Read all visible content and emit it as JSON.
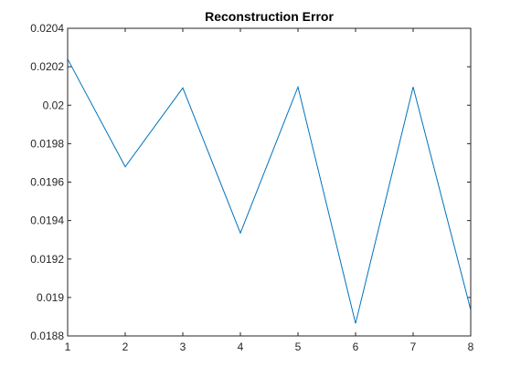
{
  "chart_data": {
    "type": "line",
    "title": "Reconstruction Error",
    "xlabel": "",
    "ylabel": "",
    "x": [
      1,
      2,
      3,
      4,
      5,
      6,
      7,
      8
    ],
    "series": [
      {
        "values": [
          0.02024,
          0.01968,
          0.02009,
          0.019335,
          0.020095,
          0.018865,
          0.020095,
          0.018935
        ],
        "color": "#0072bd"
      }
    ],
    "xlim": [
      1,
      8
    ],
    "ylim": [
      0.0188,
      0.0204
    ],
    "xticks": [
      1,
      2,
      3,
      4,
      5,
      6,
      7,
      8
    ],
    "xtick_labels": [
      "1",
      "2",
      "3",
      "4",
      "5",
      "6",
      "7",
      "8"
    ],
    "yticks": [
      0.0188,
      0.019,
      0.0192,
      0.0194,
      0.0196,
      0.0198,
      0.02,
      0.0202,
      0.0204
    ],
    "ytick_labels": [
      "0.0188",
      "0.019",
      "0.0192",
      "0.0194",
      "0.0196",
      "0.0198",
      "0.02",
      "0.0202",
      "0.0204"
    ],
    "grid": false,
    "legend": "none",
    "axis_color": "#262626"
  }
}
